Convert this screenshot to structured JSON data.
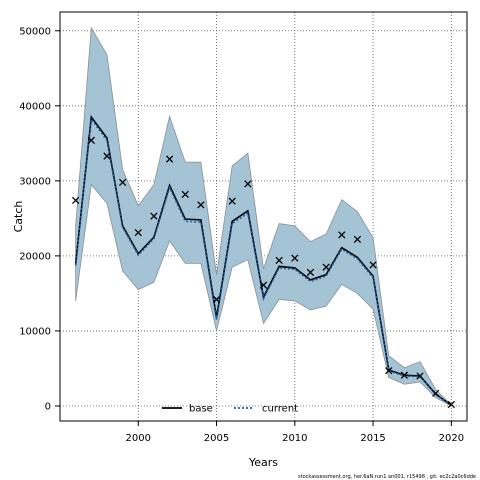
{
  "chart_data": {
    "type": "line",
    "title": "",
    "xlabel": "Years",
    "ylabel": "Catch",
    "xlim": [
      1995,
      2021.0
    ],
    "ylim": [
      -2000,
      52500
    ],
    "x_ticks": [
      2000,
      2005,
      2010,
      2015,
      2020
    ],
    "y_ticks": [
      0,
      10000,
      20000,
      30000,
      40000,
      50000
    ],
    "grid": true,
    "legend_position": "bottom-center",
    "x": [
      1996,
      1997,
      1998,
      1999,
      2000,
      2001,
      2002,
      2003,
      2004,
      2005,
      2006,
      2007,
      2008,
      2009,
      2010,
      2011,
      2012,
      2013,
      2014,
      2015,
      2016,
      2017,
      2018,
      2019,
      2020
    ],
    "series": [
      {
        "name": "base",
        "color": "#000000",
        "values": [
          19000,
          38500,
          35700,
          24000,
          20300,
          22500,
          29400,
          24900,
          24800,
          11800,
          24600,
          26000,
          14500,
          18600,
          18400,
          16800,
          17500,
          21100,
          19800,
          17300,
          4800,
          4100,
          4000,
          1600,
          100
        ]
      },
      {
        "name": "current",
        "color": "#1f5fa8",
        "values": [
          18700,
          38200,
          35400,
          23800,
          20100,
          22300,
          29100,
          24600,
          24500,
          11500,
          24300,
          25700,
          14300,
          18400,
          18200,
          16600,
          17300,
          20900,
          19600,
          17100,
          4700,
          4000,
          3900,
          1500,
          80
        ]
      }
    ],
    "band": {
      "lower": [
        14000,
        29500,
        27000,
        18000,
        15500,
        16500,
        22000,
        19000,
        19000,
        10000,
        18500,
        19500,
        11000,
        14200,
        14000,
        12800,
        13300,
        16200,
        15000,
        12900,
        3800,
        2900,
        3200,
        1100,
        0
      ],
      "upper": [
        24000,
        50400,
        46800,
        31500,
        26700,
        29500,
        38600,
        32500,
        32500,
        17500,
        32000,
        33700,
        18300,
        24300,
        24000,
        21900,
        22900,
        27500,
        25900,
        22400,
        6700,
        5100,
        5900,
        2200,
        150
      ],
      "color": "#a4c4d5"
    },
    "observations": {
      "marker": "x",
      "values": [
        27400,
        35400,
        33300,
        29800,
        23100,
        25300,
        32900,
        28200,
        26800,
        14200,
        27300,
        29600,
        16100,
        19400,
        19700,
        17800,
        18500,
        22800,
        22200,
        18800,
        4700,
        4100,
        4000,
        1700,
        200
      ]
    }
  },
  "footnote": "stockassessment.org,  her.6aN.run1  an001,  r15498 ,  git:  ec2c2a0c6dde"
}
